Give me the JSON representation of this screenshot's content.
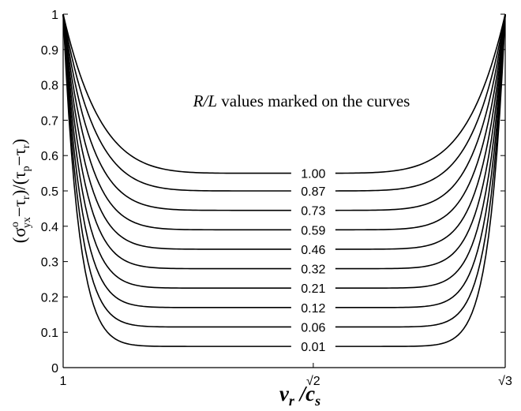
{
  "chart_data": {
    "type": "line",
    "x_range_label": [
      "1",
      "√2",
      "√3"
    ],
    "xlim": [
      1,
      1.7320508
    ],
    "ylim": [
      0,
      1
    ],
    "yticks": [
      0,
      0.1,
      0.2,
      0.3,
      0.4,
      0.5,
      0.6,
      0.7,
      0.8,
      0.9,
      1
    ],
    "ytick_labels": [
      "0",
      "0.1",
      "0.2",
      "0.3",
      "0.4",
      "0.5",
      "0.6",
      "0.7",
      "0.8",
      "0.9",
      "1"
    ],
    "xticks": [
      1,
      1.4142136,
      1.7320508
    ],
    "xtick_labels": [
      "1",
      "√2",
      "√3"
    ],
    "xlabel_main": "v",
    "xlabel_sub_r": "r",
    "xlabel_slash": " /c",
    "xlabel_sub_s": "s",
    "ylabel_parts": {
      "open": "(σ",
      "sup": "o",
      "sub": "yx",
      "mid1": "−τ",
      "sub_r1": "r",
      "mid2": ")/(τ",
      "sub_p": "p",
      "mid3": "−τ",
      "sub_r2": "r",
      "close": ")"
    },
    "annotation_italic": "R/L",
    "annotation_rest": " values marked on the curves",
    "grid": false,
    "series": [
      {
        "name": "1.00",
        "min_y": 0.55
      },
      {
        "name": "0.87",
        "min_y": 0.5
      },
      {
        "name": "0.73",
        "min_y": 0.445
      },
      {
        "name": "0.59",
        "min_y": 0.39
      },
      {
        "name": "0.46",
        "min_y": 0.335
      },
      {
        "name": "0.32",
        "min_y": 0.28
      },
      {
        "name": "0.21",
        "min_y": 0.225
      },
      {
        "name": "0.12",
        "min_y": 0.17
      },
      {
        "name": "0.06",
        "min_y": 0.115
      },
      {
        "name": "0.01",
        "min_y": 0.06
      }
    ],
    "curve_edge_y": 1.0
  }
}
